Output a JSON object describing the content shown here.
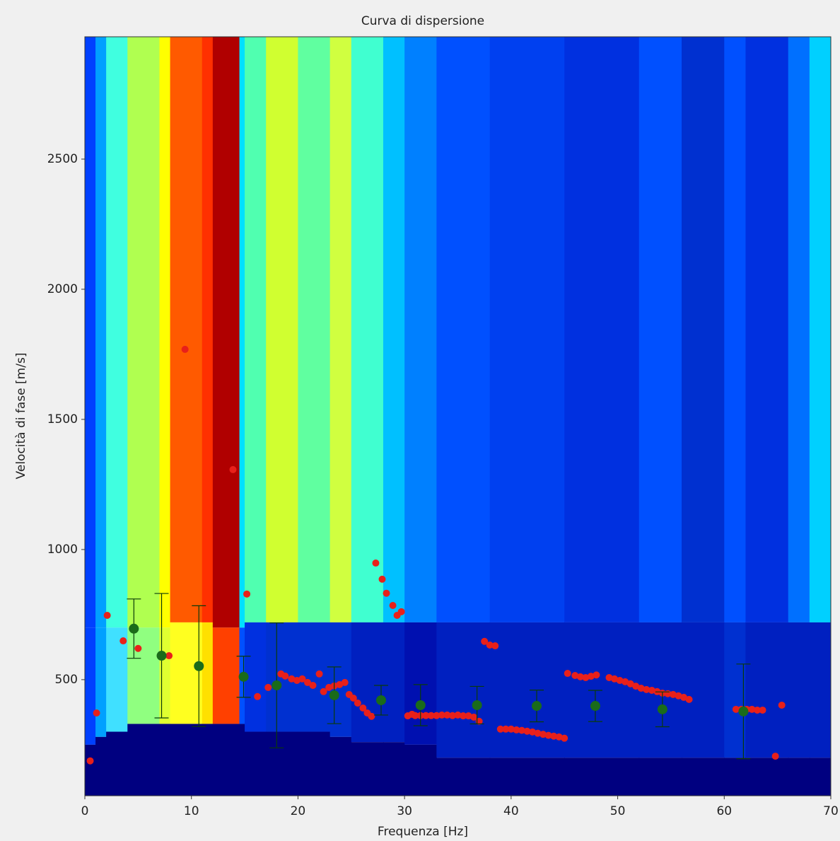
{
  "chart_data": {
    "type": "scatter",
    "title": "Curva di dispersione",
    "x_label": "Frequenza [Hz]",
    "y_label": "Velocità di fase  [m/s]",
    "xlim": [
      0,
      70
    ],
    "ylim": [
      54,
      2970
    ],
    "xticks": [
      0,
      10,
      20,
      30,
      40,
      50,
      60,
      70
    ],
    "yticks": [
      500,
      1000,
      1500,
      2000,
      2500
    ],
    "heatmap": {
      "x_edges": [
        0,
        1,
        2,
        4,
        7,
        8,
        11,
        12,
        14.5,
        15,
        17,
        20,
        23,
        25,
        28,
        30,
        33,
        38,
        45,
        52,
        56,
        60,
        62,
        66,
        68,
        70
      ],
      "top_colors": [
        "#0040ff",
        "#00a0ff",
        "#40ffe0",
        "#b0ff50",
        "#ffff00",
        "#ff5a00",
        "#ff3000",
        "#b00000",
        "#00e0ff",
        "#50ffb0",
        "#d0ff30",
        "#60ffa0",
        "#d0ff40",
        "#40ffd0",
        "#00c0ff",
        "#0080ff",
        "#0050ff",
        "#0040f0",
        "#0030e0",
        "#0050ff",
        "#0030d0",
        "#0050ff",
        "#0030e0",
        "#0070ff",
        "#00d0ff"
      ],
      "mid_colors": [
        "#0040ff",
        "#00a0ff",
        "#40e0ff",
        "#90ff80",
        "#e0ff30",
        "#ffff20",
        "#ffe000",
        "#ff4000",
        "#0050ff",
        "#0030e0",
        "#0030d0",
        "#0030d0",
        "#0030d0",
        "#0020c0",
        "#0020c0",
        "#0010b0",
        "#0020c0",
        "#0020c0",
        "#0020c0",
        "#0020c0",
        "#0020c0",
        "#0030d0",
        "#0020c0",
        "#0020c0",
        "#0020c0"
      ],
      "split_high": [
        700,
        700,
        700,
        700,
        700,
        720,
        720,
        700,
        700,
        720,
        720,
        720,
        720,
        720,
        720,
        720,
        720,
        720,
        720,
        720,
        720,
        720,
        720,
        720,
        720
      ],
      "split_low": [
        250,
        280,
        300,
        330,
        330,
        330,
        330,
        330,
        330,
        300,
        300,
        300,
        280,
        260,
        260,
        250,
        200,
        200,
        200,
        200,
        200,
        200,
        200,
        200,
        200
      ],
      "base_color": "#000080"
    },
    "series": [
      {
        "color": "#e8201a",
        "x": [
          0.5,
          1.1,
          2.1,
          3.6,
          5.0,
          7.9,
          9.4,
          13.9,
          15.2,
          16.2,
          17.2,
          18.4,
          18.8,
          19.4,
          19.9,
          20.4,
          20.9,
          21.4,
          22.0,
          22.4,
          22.9,
          23.4,
          23.9,
          24.4,
          24.8,
          25.2,
          25.6,
          26.1,
          26.5,
          26.9,
          27.3,
          27.9,
          28.3,
          28.9,
          29.3,
          29.7,
          30.3,
          30.7,
          31,
          31.5,
          32,
          32.5,
          33,
          33.5,
          34,
          34.5,
          35,
          35.5,
          36,
          36.5,
          37,
          37.5,
          38.0,
          38.5,
          39.0,
          39.5,
          40,
          40.5,
          41,
          41.5,
          42,
          42.5,
          43,
          43.5,
          44,
          44.5,
          45,
          45.3,
          46,
          46.5,
          47,
          47.5,
          48,
          49.2,
          49.7,
          50.2,
          50.7,
          51.2,
          51.7,
          52.2,
          52.7,
          53.2,
          53.7,
          54.2,
          54.7,
          55.2,
          55.7,
          56.2,
          56.7,
          61.1,
          61.6,
          62.1,
          62.6,
          63.1,
          63.6,
          64.8,
          65.4
        ],
        "values": [
          188,
          372,
          747,
          649,
          620,
          592,
          1769,
          1307,
          829,
          435,
          470,
          522,
          514,
          503,
          497,
          503,
          489,
          478,
          522,
          454,
          470,
          476,
          481,
          489,
          443,
          429,
          410,
          391,
          372,
          359,
          948,
          886,
          832,
          785,
          747,
          761,
          361,
          367,
          362,
          362,
          362,
          362,
          362,
          364,
          364,
          362,
          364,
          361,
          361,
          356,
          340,
          647,
          633,
          630,
          310,
          310,
          310,
          307,
          305,
          302,
          299,
          294,
          290,
          286,
          283,
          280,
          275,
          524,
          516,
          511,
          508,
          513,
          518,
          508,
          503,
          497,
          492,
          484,
          475,
          467,
          462,
          459,
          454,
          448,
          446,
          443,
          438,
          432,
          424,
          386,
          386,
          386,
          386,
          383,
          383,
          206,
          402
        ]
      },
      {
        "color": "#1a6b1a",
        "x": [
          4.6,
          7.2,
          10.7,
          14.9,
          18.0,
          23.4,
          27.8,
          31.5,
          36.8,
          42.4,
          47.9,
          54.2,
          61.8
        ],
        "values": [
          696,
          592,
          552,
          511,
          478,
          440,
          421,
          402,
          402,
          399,
          399,
          386,
          378
        ],
        "errors": [
          114,
          239,
          232,
          79,
          240,
          109,
          57,
          79,
          72,
          61,
          60,
          67,
          182
        ]
      }
    ]
  }
}
